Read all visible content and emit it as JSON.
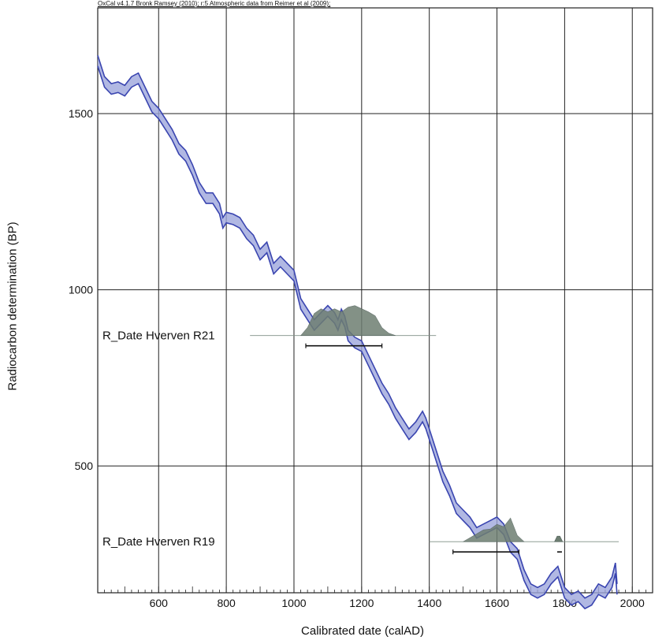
{
  "chart_data": {
    "type": "line",
    "header": "OxCal v4.1.7 Bronk Ramsey (2010); r:5 Atmospheric data from Reimer et al (2009);",
    "xlabel": "Calibrated date (calAD)",
    "ylabel": "Radiocarbon determination (BP)",
    "xlim": [
      420,
      2060
    ],
    "ylim": [
      140,
      1800
    ],
    "x_ticks": [
      600,
      800,
      1000,
      1200,
      1400,
      1600,
      1800,
      2000
    ],
    "y_ticks": [
      500,
      1000,
      1500
    ],
    "grid": true,
    "curve_color": "#3a45b0",
    "fill_color": "#9da6dc",
    "dist_color": "#6e7e72",
    "series": [
      {
        "x": [
          420,
          440,
          460,
          480,
          500,
          520,
          540,
          560,
          580,
          600,
          620,
          640,
          660,
          680,
          700,
          720,
          740,
          760,
          780,
          790,
          800,
          820,
          840,
          860,
          880,
          900,
          920,
          940,
          960,
          980,
          1000,
          1010,
          1020,
          1040,
          1060,
          1080,
          1100,
          1120,
          1130,
          1140,
          1150,
          1160,
          1170,
          1180,
          1200,
          1220,
          1240,
          1260,
          1280,
          1300,
          1320,
          1340,
          1360,
          1380,
          1390,
          1400,
          1420,
          1440,
          1460,
          1480,
          1500,
          1520,
          1540,
          1560,
          1580,
          1600,
          1620,
          1640,
          1660,
          1680,
          1700,
          1720,
          1740,
          1760,
          1780,
          1790,
          1800,
          1820,
          1840,
          1860,
          1880,
          1900,
          1920,
          1940,
          1950,
          1955
        ],
        "y": [
          1650,
          1590,
          1570,
          1575,
          1565,
          1590,
          1600,
          1560,
          1520,
          1500,
          1470,
          1440,
          1400,
          1380,
          1340,
          1290,
          1260,
          1260,
          1230,
          1190,
          1205,
          1200,
          1190,
          1160,
          1140,
          1100,
          1120,
          1060,
          1080,
          1060,
          1040,
          1000,
          960,
          930,
          900,
          920,
          940,
          920,
          900,
          930,
          910,
          870,
          860,
          850,
          840,
          800,
          760,
          720,
          690,
          650,
          620,
          590,
          610,
          640,
          620,
          590,
          530,
          470,
          430,
          380,
          360,
          340,
          310,
          320,
          330,
          340,
          320,
          270,
          250,
          190,
          150,
          140,
          150,
          180,
          200,
          170,
          140,
          120,
          130,
          110,
          120,
          150,
          140,
          170,
          210,
          150
        ]
      }
    ],
    "distributions": [
      {
        "name": "R_Date Hverven R21",
        "label_y": 870,
        "line_y": 870,
        "x_range": [
          870,
          1420
        ],
        "shape": [
          [
            1020,
            0
          ],
          [
            1040,
            10
          ],
          [
            1060,
            28
          ],
          [
            1080,
            34
          ],
          [
            1100,
            30
          ],
          [
            1120,
            34
          ],
          [
            1140,
            30
          ],
          [
            1160,
            36
          ],
          [
            1180,
            38
          ],
          [
            1200,
            34
          ],
          [
            1220,
            30
          ],
          [
            1240,
            25
          ],
          [
            1260,
            10
          ],
          [
            1280,
            3
          ],
          [
            1300,
            0
          ]
        ],
        "span": [
          1035,
          1260
        ]
      },
      {
        "name": "R_Date Hverven R19",
        "label_y": 285,
        "line_y": 285,
        "x_range": [
          1400,
          1960
        ],
        "shape": [
          [
            1500,
            0
          ],
          [
            1520,
            5
          ],
          [
            1540,
            10
          ],
          [
            1560,
            15
          ],
          [
            1580,
            16
          ],
          [
            1600,
            22
          ],
          [
            1620,
            19
          ],
          [
            1640,
            30
          ],
          [
            1660,
            8
          ],
          [
            1680,
            0
          ]
        ],
        "small_shape": [
          [
            1770,
            0
          ],
          [
            1778,
            7
          ],
          [
            1786,
            7
          ],
          [
            1794,
            0
          ]
        ],
        "span": [
          1470,
          1665
        ],
        "small_span": [
          1778,
          1792
        ]
      }
    ]
  }
}
